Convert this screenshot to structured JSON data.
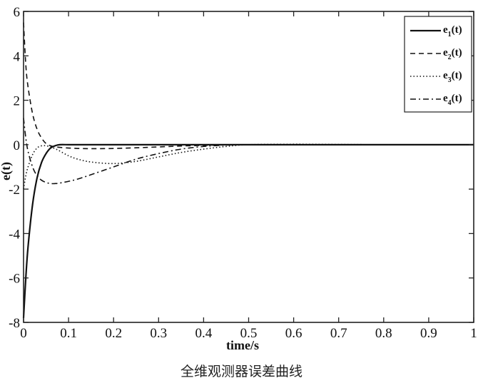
{
  "chart_data": {
    "type": "line",
    "title": "",
    "caption": "全维观测器误差曲线",
    "xlabel": "time/s",
    "ylabel": "e(t)",
    "xlim": [
      0,
      1
    ],
    "ylim": [
      -8,
      6
    ],
    "xticks": [
      0,
      0.1,
      0.2,
      0.3,
      0.4,
      0.5,
      0.6,
      0.7,
      0.8,
      0.9,
      1
    ],
    "xtick_labels": [
      "0",
      "0.1",
      "0.2",
      "0.3",
      "0.4",
      "0.5",
      "0.6",
      "0.7",
      "0.8",
      "0.9",
      "1"
    ],
    "yticks": [
      -8,
      -6,
      -4,
      -2,
      0,
      2,
      4,
      6
    ],
    "ytick_labels": [
      "-8",
      "-6",
      "-4",
      "-2",
      "0",
      "2",
      "4",
      "6"
    ],
    "grid": false,
    "legend_position": "upper right",
    "x": [
      0,
      0.005,
      0.01,
      0.02,
      0.03,
      0.04,
      0.05,
      0.06,
      0.07,
      0.08,
      0.1,
      0.12,
      0.15,
      0.2,
      0.25,
      0.3,
      0.35,
      0.4,
      0.45,
      0.5,
      0.6,
      0.7,
      0.8,
      0.9,
      1.0
    ],
    "series": [
      {
        "name": "e1(t)",
        "label_base": "e",
        "label_sub": "1",
        "label_tail": "(t)",
        "style": "solid",
        "values": [
          -7.8,
          -6.0,
          -4.6,
          -2.7,
          -1.5,
          -0.8,
          -0.4,
          -0.15,
          -0.05,
          0.0,
          0.0,
          0.0,
          0.0,
          0.0,
          0.0,
          0.0,
          0.0,
          0.0,
          0.0,
          0.0,
          0.0,
          0.0,
          0.0,
          0.0,
          0.0
        ]
      },
      {
        "name": "e2(t)",
        "label_base": "e",
        "label_sub": "2",
        "label_tail": "(t)",
        "style": "dashed",
        "values": [
          5.5,
          3.6,
          2.6,
          1.4,
          0.7,
          0.3,
          0.05,
          -0.05,
          -0.1,
          -0.12,
          -0.15,
          -0.17,
          -0.18,
          -0.17,
          -0.14,
          -0.1,
          -0.06,
          -0.03,
          -0.01,
          0.0,
          0.0,
          0.0,
          0.0,
          0.0,
          0.0
        ]
      },
      {
        "name": "e3(t)",
        "label_base": "e",
        "label_sub": "3",
        "label_tail": "(t)",
        "style": "dotted",
        "values": [
          -2.0,
          -1.4,
          -1.0,
          -0.45,
          -0.15,
          -0.05,
          -0.05,
          -0.1,
          -0.18,
          -0.28,
          -0.5,
          -0.65,
          -0.78,
          -0.85,
          -0.75,
          -0.55,
          -0.35,
          -0.2,
          -0.08,
          0.0,
          0.02,
          0.01,
          0.0,
          0.0,
          0.0
        ]
      },
      {
        "name": "e4(t)",
        "label_base": "e",
        "label_sub": "4",
        "label_tail": "(t)",
        "style": "dashdot",
        "values": [
          1.2,
          0.3,
          -0.3,
          -1.0,
          -1.4,
          -1.6,
          -1.7,
          -1.75,
          -1.75,
          -1.73,
          -1.65,
          -1.55,
          -1.35,
          -1.0,
          -0.65,
          -0.4,
          -0.2,
          -0.08,
          -0.02,
          0.0,
          0.0,
          0.0,
          0.0,
          0.0,
          0.0
        ]
      }
    ]
  },
  "colors": {
    "line": "#111111",
    "background": "#ffffff",
    "axis": "#222222"
  }
}
